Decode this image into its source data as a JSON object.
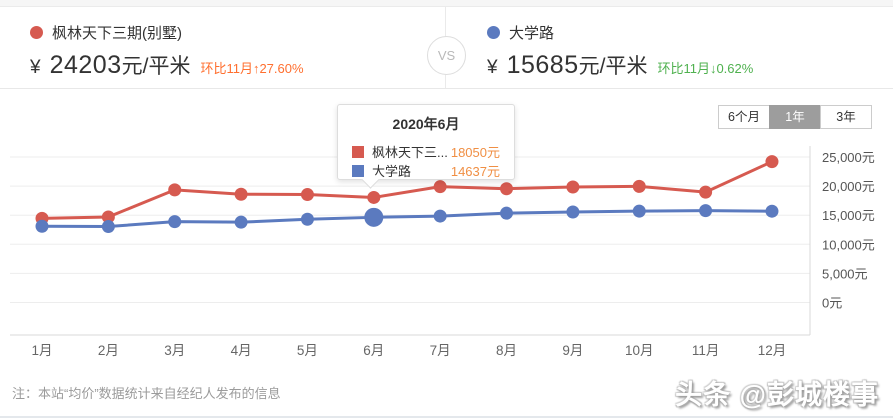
{
  "header": {
    "left": {
      "dot_color": "#d65a50",
      "name": "枫林天下三期(别墅)",
      "currency": "¥",
      "price": "24203",
      "unit": "元/平米",
      "mom": "环比11月↑27.60%",
      "mom_color": "#ff6f2f"
    },
    "vs_label": "VS",
    "right": {
      "dot_color": "#5b7abf",
      "name": "大学路",
      "currency": "¥",
      "price": "15685",
      "unit": "元/平米",
      "mom": "环比11月↓0.62%",
      "mom_color": "#4fb14f"
    }
  },
  "toolbar": {
    "periods": [
      {
        "label": "6个月",
        "selected": false
      },
      {
        "label": "1年",
        "selected": true
      },
      {
        "label": "3年",
        "selected": false
      }
    ]
  },
  "tooltip": {
    "title": "2020年6月",
    "rows": [
      {
        "label": "枫林天下三...",
        "value": "18050元",
        "color": "#d65a50"
      },
      {
        "label": "大学路",
        "value": "14637元",
        "color": "#5b7abf"
      }
    ],
    "value_color": "#f08f44"
  },
  "chart_data": {
    "type": "line",
    "categories": [
      "1月",
      "2月",
      "3月",
      "4月",
      "5月",
      "6月",
      "7月",
      "8月",
      "9月",
      "10月",
      "11月",
      "12月"
    ],
    "series": [
      {
        "name": "枫林天下三期(别墅)",
        "color": "#d65a50",
        "values": [
          14450,
          14700,
          19350,
          18600,
          18550,
          18050,
          19900,
          19550,
          19850,
          19950,
          18966,
          24203
        ]
      },
      {
        "name": "大学路",
        "color": "#5b7abf",
        "values": [
          13100,
          13050,
          13900,
          13800,
          14300,
          14637,
          14850,
          15350,
          15550,
          15700,
          15783,
          15685
        ]
      }
    ],
    "highlight": {
      "series": "大学路",
      "month_index": 5
    },
    "ylabels": [
      "25,000元",
      "20,000元",
      "15,000元",
      "10,000元",
      "5,000元",
      "0元"
    ],
    "ylim": [
      0,
      25000
    ],
    "grid": true,
    "legend_position": "header",
    "tooltip_month": "2020年6月"
  },
  "footer": {
    "note": "注：本站“均价”数据统计来自经纪人发布的信息",
    "watermark": "头条 @彭城楼事"
  }
}
